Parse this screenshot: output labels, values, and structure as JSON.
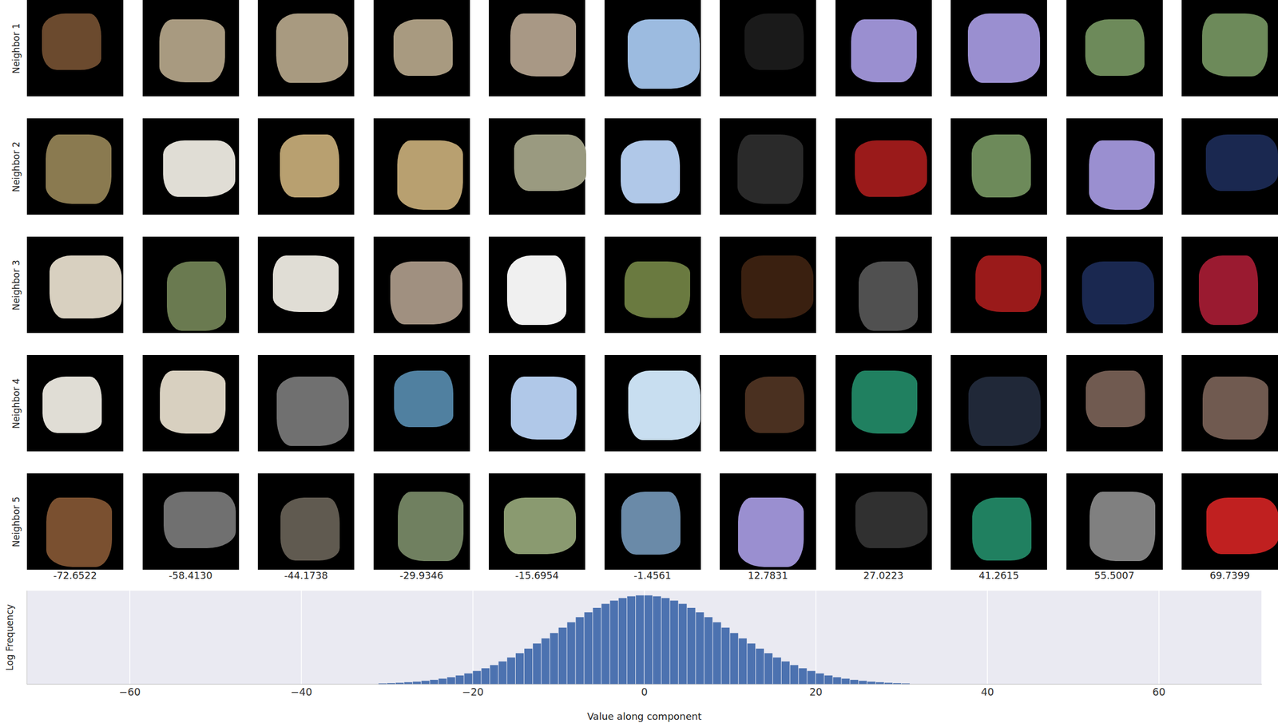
{
  "chart_data": {
    "type": "histogram",
    "x_label": "Value along component",
    "y_label": "Log Frequency",
    "bins": [
      -31,
      -30,
      -29,
      -28,
      -27,
      -26,
      -25,
      -24,
      -23,
      -22,
      -21,
      -20,
      -19,
      -18,
      -17,
      -16,
      -15,
      -14,
      -13,
      -12,
      -11,
      -10,
      -9,
      -8,
      -7,
      -6,
      -5,
      -4,
      -3,
      -2,
      -1,
      0,
      1,
      2,
      3,
      4,
      5,
      6,
      7,
      8,
      9,
      10,
      11,
      12,
      13,
      14,
      15,
      16,
      17,
      18,
      19,
      20,
      21,
      22,
      23,
      24,
      25,
      26,
      27,
      28,
      29,
      30,
      31
    ],
    "values": [
      0.9,
      1.2,
      1.6,
      2.2,
      2.8,
      3.7,
      4.7,
      6.0,
      7.5,
      9.4,
      11.6,
      14.2,
      17.1,
      20.5,
      24.4,
      28.6,
      33.2,
      38.1,
      43.5,
      49.0,
      54.8,
      60.5,
      66.2,
      71.7,
      76.9,
      81.6,
      85.9,
      89.4,
      92.1,
      93.9,
      94.9,
      94.9,
      93.9,
      92.1,
      89.4,
      85.9,
      81.6,
      76.9,
      71.7,
      66.2,
      60.5,
      54.8,
      49.0,
      43.5,
      38.1,
      33.2,
      28.6,
      24.4,
      20.5,
      17.1,
      14.2,
      11.6,
      9.4,
      7.5,
      6.0,
      4.7,
      3.7,
      2.8,
      2.2,
      1.6,
      1.2,
      0.9
    ],
    "color": "#4c72b0",
    "xlim": [
      -72,
      72
    ],
    "xticks": [
      {
        "value": -60,
        "label": "−60"
      },
      {
        "value": -40,
        "label": "−40"
      },
      {
        "value": -20,
        "label": "−20"
      },
      0,
      20,
      40,
      60
    ],
    "ylim": [
      0,
      100
    ],
    "grid": true,
    "tick_labels": "x"
  },
  "image_grid": {
    "row_labels": [
      "Neighbor 1",
      "Neighbor 2",
      "Neighbor 3",
      "Neighbor 4",
      "Neighbor 5"
    ],
    "column_values": [
      -72.6522,
      {
        "value": -58.413,
        "label": "-58.4130"
      },
      -44.1738,
      -29.9346,
      -15.6954,
      -1.4561,
      12.7831,
      27.0223,
      41.2615,
      55.5007,
      69.7399
    ]
  }
}
